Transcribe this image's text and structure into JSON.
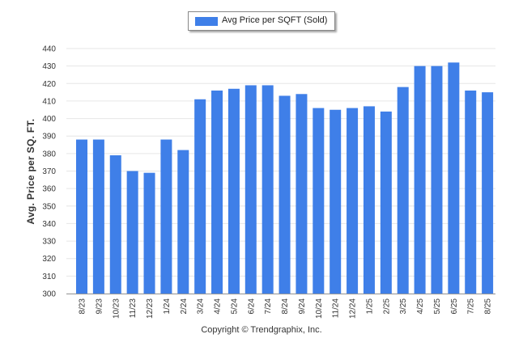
{
  "legend": {
    "label": "Avg Price per SQFT (Sold)"
  },
  "copyright": "Copyright © Trendgraphix, Inc.",
  "colors": {
    "bar": "#3f7fe8",
    "grid": "#e6e6e6",
    "axis": "#999999"
  },
  "chart_data": {
    "type": "bar",
    "ylabel": "Avg. Price per SQ. FT.",
    "xlabel": "",
    "ylim": [
      300,
      440
    ],
    "yticks": [
      300,
      310,
      320,
      330,
      340,
      350,
      360,
      370,
      380,
      390,
      400,
      410,
      420,
      430,
      440
    ],
    "grid": true,
    "legend_position": "top-center",
    "categories": [
      "8/23",
      "9/23",
      "10/23",
      "11/23",
      "12/23",
      "1/24",
      "2/24",
      "3/24",
      "4/24",
      "5/24",
      "6/24",
      "7/24",
      "8/24",
      "9/24",
      "10/24",
      "11/24",
      "12/24",
      "1/25",
      "2/25",
      "3/25",
      "4/25",
      "5/25",
      "6/25",
      "7/25",
      "8/25"
    ],
    "series": [
      {
        "name": "Avg Price per SQFT (Sold)",
        "values": [
          388,
          388,
          379,
          370,
          369,
          388,
          382,
          411,
          416,
          417,
          419,
          419,
          413,
          414,
          406,
          405,
          406,
          407,
          404,
          418,
          430,
          430,
          432,
          416,
          415
        ]
      }
    ]
  }
}
